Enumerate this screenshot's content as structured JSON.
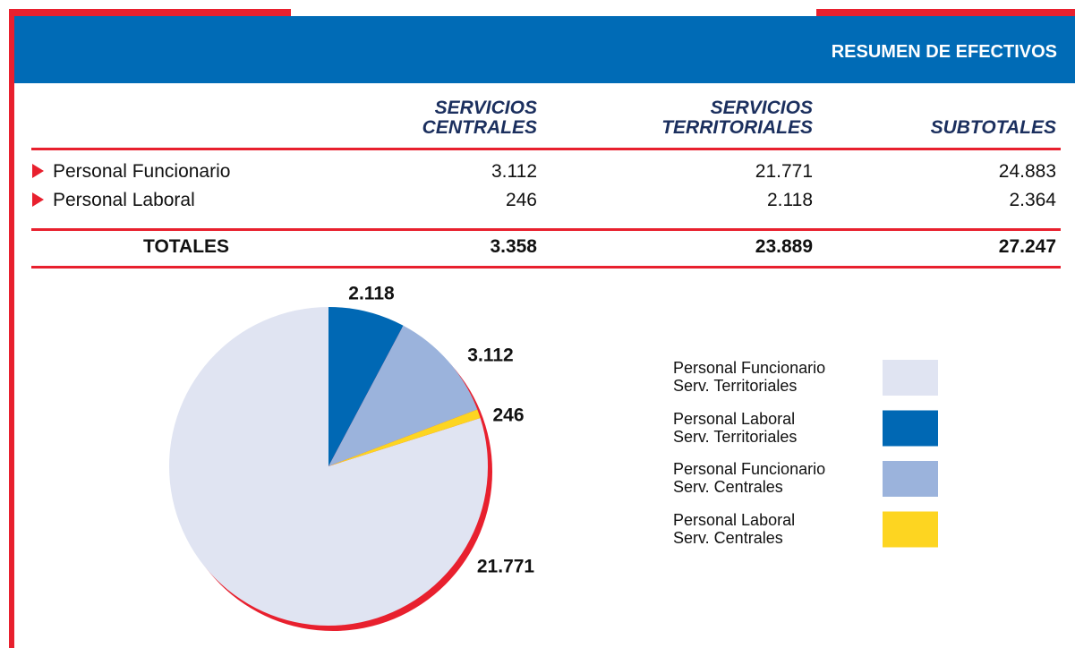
{
  "header": {
    "title": "RESUMEN DE EFECTIVOS"
  },
  "table": {
    "columns": [
      "SERVICIOS\nCENTRALES",
      "SERVICIOS\nTERRITORIALES",
      "SUBTOTALES"
    ],
    "rows": [
      [
        "Personal Funcionario",
        "3.112",
        "21.771",
        "24.883"
      ],
      [
        "Personal Laboral",
        "246",
        "2.118",
        "2.364"
      ]
    ],
    "totals": [
      "TOTALES",
      "3.358",
      "23.889",
      "27.247"
    ]
  },
  "chart_data": {
    "type": "pie",
    "categories": [
      "Personal Funcionario\nServ. Territoriales",
      "Personal Laboral\nServ. Territoriales",
      "Personal Funcionario\nServ. Centrales",
      "Personal Laboral\nServ. Centrales"
    ],
    "values": [
      21771,
      2118,
      3112,
      246
    ],
    "value_labels": [
      "21.771",
      "2.118",
      "3.112",
      "246"
    ],
    "colors": [
      "#e0e4f2",
      "#0068b4",
      "#9bb3dc",
      "#fdd521"
    ]
  }
}
